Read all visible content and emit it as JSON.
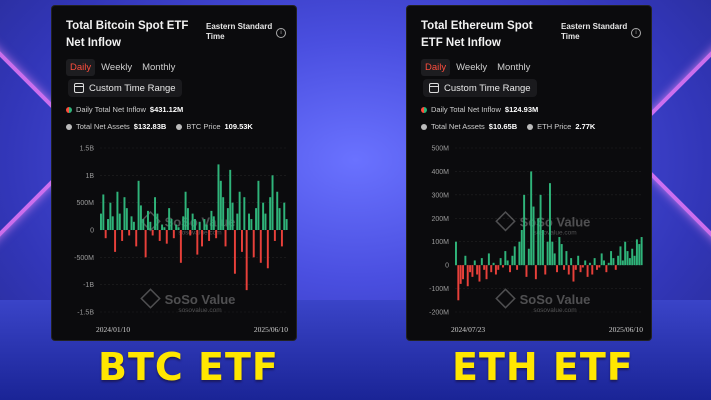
{
  "btc": {
    "title": "Total Bitcoin Spot ETF Net Inflow",
    "timezone": "Eastern Standard Time",
    "tabs": [
      {
        "label": "Daily",
        "active": true
      },
      {
        "label": "Weekly",
        "active": false
      },
      {
        "label": "Monthly",
        "active": false
      }
    ],
    "custom_range": "Custom Time Range",
    "daily_label": "Daily Total Net Inflow",
    "daily_value": "$431.12M",
    "assets_label": "Total Net Assets",
    "assets_value": "$132.83B",
    "price_label": "BTC Price",
    "price_value": "109.53K",
    "watermark": "SoSo Value",
    "watermark_sub": "sosovalue.com",
    "caption": "BTC ETF"
  },
  "eth": {
    "title": "Total Ethereum Spot ETF Net Inflow",
    "timezone": "Eastern Standard Time",
    "tabs": [
      {
        "label": "Daily",
        "active": true
      },
      {
        "label": "Weekly",
        "active": false
      },
      {
        "label": "Monthly",
        "active": false
      }
    ],
    "custom_range": "Custom Time Range",
    "daily_label": "Daily Total Net Inflow",
    "daily_value": "$124.93M",
    "assets_label": "Total Net Assets",
    "assets_value": "$10.65B",
    "price_label": "ETH Price",
    "price_value": "2.77K",
    "watermark": "SoSo Value",
    "watermark_sub": "sosovalue.com",
    "caption": "ETH ETF"
  },
  "colors": {
    "positive": "#2fb47a",
    "negative": "#e8403a",
    "active_tab": "#ff4d3d",
    "caption": "#ffe600"
  },
  "chart_data": [
    {
      "type": "bar",
      "title": "Total Bitcoin Spot ETF Net Inflow",
      "yticks": [
        "1.5B",
        "1B",
        "500M",
        "0",
        "-500M",
        "-1B",
        "-1.5B"
      ],
      "ylim": [
        -1500,
        1500
      ],
      "y_unit": "M",
      "x_start": "2024/01/10",
      "x_end": "2025/06/10",
      "series": [
        {
          "values": [
            300,
            650,
            -150,
            200,
            500,
            250,
            -400,
            700,
            300,
            -200,
            600,
            400,
            -100,
            250,
            150,
            -300,
            900,
            450,
            200,
            -500,
            350,
            150,
            -100,
            600,
            300,
            -200,
            100,
            50,
            -250,
            400,
            200,
            -150,
            100,
            50,
            -600,
            250,
            700,
            400,
            -100,
            300,
            200,
            -450,
            150,
            -300,
            200,
            100,
            -200,
            350,
            250,
            -150,
            1200,
            900,
            600,
            -300,
            400,
            1100,
            500,
            -800,
            300,
            700,
            -400,
            600,
            -1100,
            300,
            200,
            -500,
            400,
            900,
            -600,
            500,
            300,
            -700,
            600,
            1000,
            -200,
            700,
            400,
            -300,
            500,
            200
          ]
        }
      ]
    },
    {
      "type": "bar",
      "title": "Total Ethereum Spot ETF Net Inflow",
      "yticks": [
        "500M",
        "400M",
        "300M",
        "200M",
        "100M",
        "0",
        "-100M",
        "-200M"
      ],
      "ylim": [
        -200,
        500
      ],
      "y_unit": "M",
      "x_start": "2024/07/23",
      "x_end": "2025/06/10",
      "series": [
        {
          "values": [
            100,
            -150,
            -80,
            -60,
            40,
            -90,
            -30,
            -50,
            20,
            -40,
            -70,
            30,
            -20,
            -60,
            50,
            -30,
            10,
            -40,
            -20,
            30,
            -10,
            60,
            20,
            -30,
            40,
            80,
            -20,
            100,
            150,
            300,
            -50,
            70,
            400,
            250,
            -60,
            200,
            300,
            150,
            -40,
            100,
            350,
            100,
            50,
            -30,
            120,
            90,
            -20,
            60,
            -40,
            30,
            -70,
            -20,
            40,
            -30,
            -10,
            20,
            -50,
            10,
            -40,
            30,
            -20,
            -10,
            50,
            20,
            -30,
            10,
            60,
            30,
            -20,
            40,
            80,
            20,
            100,
            60,
            30,
            70,
            40,
            110,
            90,
            120
          ]
        }
      ]
    }
  ]
}
